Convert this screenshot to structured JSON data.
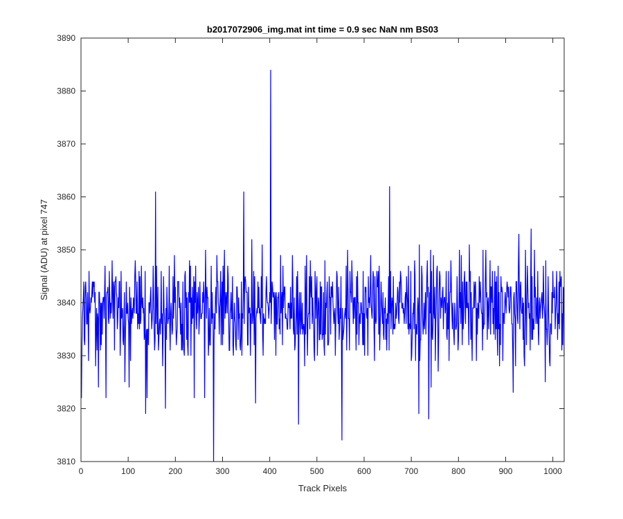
{
  "chart_data": {
    "type": "line",
    "title": "b2017072906_img.mat int time = 0.9 sec  NaN nm BS03",
    "xlabel": "Track Pixels",
    "ylabel": "Signal (ADU) at pixel 747",
    "xlim": [
      0,
      1024
    ],
    "ylim": [
      3810,
      3890
    ],
    "xticks": [
      0,
      100,
      200,
      300,
      400,
      500,
      600,
      700,
      800,
      900,
      1000
    ],
    "yticks": [
      3810,
      3820,
      3830,
      3840,
      3850,
      3860,
      3870,
      3880,
      3890
    ],
    "grid": false,
    "line_color": "#0000ff",
    "series": [
      {
        "x_start": 1,
        "x_step": 1,
        "n_points": 1024,
        "baseline": 3839,
        "noise_range": [
          3824,
          3857
        ],
        "notable_points": [
          {
            "x": 1,
            "y": 3822
          },
          {
            "x": 37,
            "y": 3824
          },
          {
            "x": 53,
            "y": 3822
          },
          {
            "x": 137,
            "y": 3819
          },
          {
            "x": 140,
            "y": 3822
          },
          {
            "x": 158,
            "y": 3861
          },
          {
            "x": 179,
            "y": 3820
          },
          {
            "x": 240,
            "y": 3822
          },
          {
            "x": 262,
            "y": 3822
          },
          {
            "x": 281,
            "y": 3806
          },
          {
            "x": 345,
            "y": 3861
          },
          {
            "x": 370,
            "y": 3821
          },
          {
            "x": 402,
            "y": 3884
          },
          {
            "x": 461,
            "y": 3817
          },
          {
            "x": 553,
            "y": 3814
          },
          {
            "x": 654,
            "y": 3862
          },
          {
            "x": 716,
            "y": 3819
          },
          {
            "x": 737,
            "y": 3818
          },
          {
            "x": 916,
            "y": 3823
          },
          {
            "x": 984,
            "y": 3825
          },
          {
            "x": 1024,
            "y": 3830
          }
        ]
      }
    ]
  }
}
